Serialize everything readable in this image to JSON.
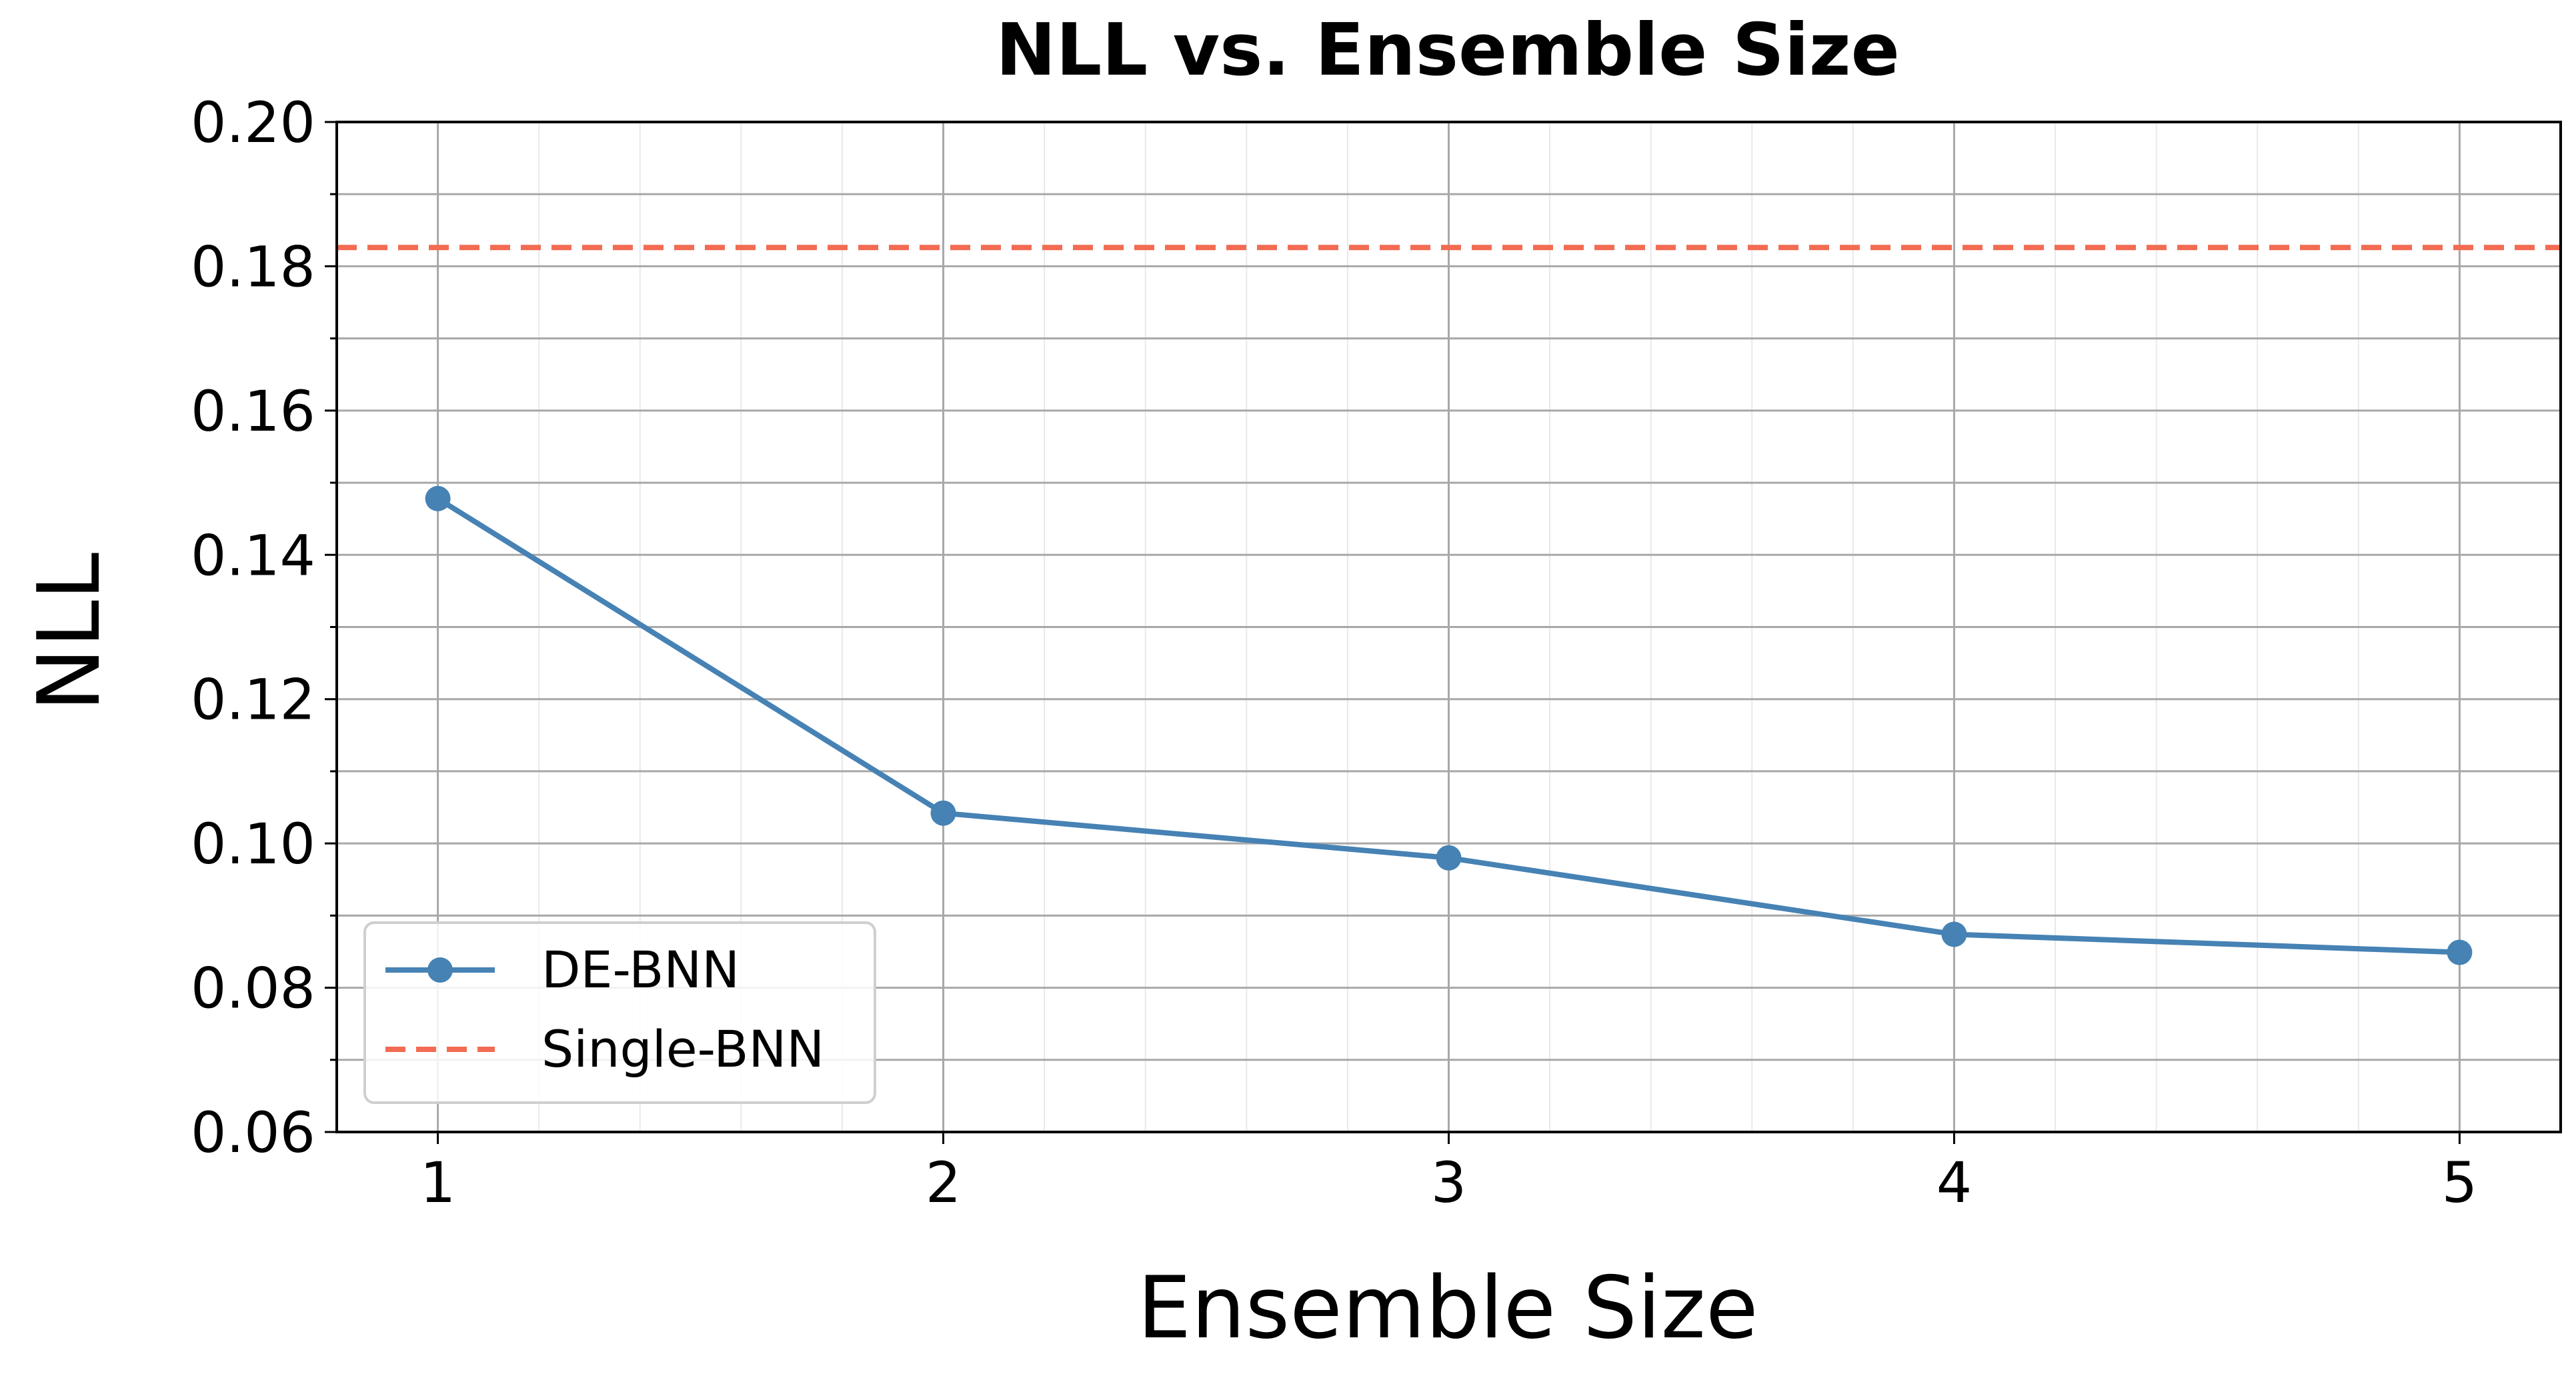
{
  "chart_data": {
    "type": "line",
    "title": "NLL vs. Ensemble Size",
    "xlabel": "Ensemble Size",
    "ylabel": "NLL",
    "x": [
      1,
      2,
      3,
      4,
      5
    ],
    "xticks": [
      "1",
      "2",
      "3",
      "4",
      "5"
    ],
    "xlim": [
      0.8,
      5.2
    ],
    "ylim": [
      0.06,
      0.2
    ],
    "yticks": [
      "0.06",
      "0.08",
      "0.10",
      "0.12",
      "0.14",
      "0.16",
      "0.18",
      "0.20"
    ],
    "grid": true,
    "legend_position": "lower-left",
    "series": [
      {
        "name": "DE-BNN",
        "style": "solid-line-with-circle-markers",
        "color": "#4682B4",
        "values": [
          0.1478,
          0.1042,
          0.098,
          0.0874,
          0.0849
        ]
      },
      {
        "name": "Single-BNN",
        "style": "dashed-horizontal-line",
        "color": "#F26B52",
        "value": 0.1826
      }
    ]
  }
}
